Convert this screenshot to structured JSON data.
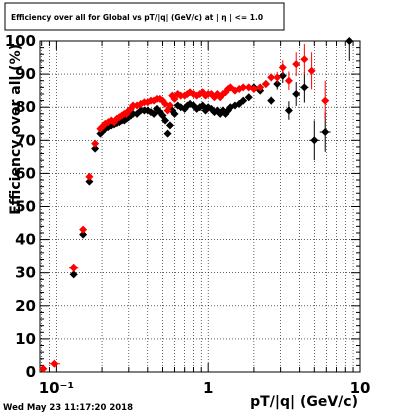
{
  "chart_data": {
    "type": "scatter",
    "title": "Efficiency over all for Global vs pT/|q| (GeV/c) at | η | <= 1.0",
    "xlabel": "pT/|q| (GeV/c)",
    "ylabel": "Efficiency over all (%)",
    "xscale": "log",
    "xlim": [
      0.078,
      10.0
    ],
    "ylim": [
      0,
      100
    ],
    "x_ticks": [
      {
        "value": 0.1,
        "label": "10⁻¹"
      },
      {
        "value": 1,
        "label": "1"
      },
      {
        "value": 10,
        "label": "10"
      }
    ],
    "y_ticks": [
      0,
      10,
      20,
      30,
      40,
      50,
      60,
      70,
      80,
      90,
      100
    ],
    "grid": true,
    "footer": "Wed May 23 11:17:20 2018",
    "series": [
      {
        "color": "#000000",
        "points": [
          {
            "x": 0.13,
            "y": 29.5
          },
          {
            "x": 0.15,
            "y": 41.5
          },
          {
            "x": 0.165,
            "y": 57.5
          },
          {
            "x": 0.18,
            "y": 67.5
          },
          {
            "x": 0.195,
            "y": 72.0
          },
          {
            "x": 0.2,
            "y": 72.5
          },
          {
            "x": 0.21,
            "y": 73.5
          },
          {
            "x": 0.22,
            "y": 74.0
          },
          {
            "x": 0.23,
            "y": 74.5
          },
          {
            "x": 0.24,
            "y": 74.8
          },
          {
            "x": 0.25,
            "y": 75.2
          },
          {
            "x": 0.26,
            "y": 75.5
          },
          {
            "x": 0.27,
            "y": 76.0
          },
          {
            "x": 0.28,
            "y": 76.0
          },
          {
            "x": 0.29,
            "y": 76.5
          },
          {
            "x": 0.3,
            "y": 77.0
          },
          {
            "x": 0.31,
            "y": 77.5
          },
          {
            "x": 0.32,
            "y": 78.0
          },
          {
            "x": 0.34,
            "y": 78.0
          },
          {
            "x": 0.36,
            "y": 79.0
          },
          {
            "x": 0.38,
            "y": 79.0
          },
          {
            "x": 0.4,
            "y": 79.0
          },
          {
            "x": 0.42,
            "y": 78.5
          },
          {
            "x": 0.44,
            "y": 78.0
          },
          {
            "x": 0.46,
            "y": 79.5
          },
          {
            "x": 0.48,
            "y": 78.5
          },
          {
            "x": 0.5,
            "y": 77.5
          },
          {
            "x": 0.52,
            "y": 76.0
          },
          {
            "x": 0.54,
            "y": 72.0
          },
          {
            "x": 0.56,
            "y": 74.5
          },
          {
            "x": 0.58,
            "y": 79.0
          },
          {
            "x": 0.6,
            "y": 78.0
          },
          {
            "x": 0.63,
            "y": 80.5
          },
          {
            "x": 0.66,
            "y": 80.0
          },
          {
            "x": 0.7,
            "y": 79.5
          },
          {
            "x": 0.73,
            "y": 80.5
          },
          {
            "x": 0.76,
            "y": 81.0
          },
          {
            "x": 0.8,
            "y": 80.5
          },
          {
            "x": 0.84,
            "y": 79.5
          },
          {
            "x": 0.88,
            "y": 80.0
          },
          {
            "x": 0.92,
            "y": 80.5
          },
          {
            "x": 0.96,
            "y": 79.0
          },
          {
            "x": 1.0,
            "y": 80.0
          },
          {
            "x": 1.05,
            "y": 79.5
          },
          {
            "x": 1.1,
            "y": 78.5
          },
          {
            "x": 1.15,
            "y": 79.0
          },
          {
            "x": 1.2,
            "y": 78.0
          },
          {
            "x": 1.25,
            "y": 79.0
          },
          {
            "x": 1.3,
            "y": 78.0
          },
          {
            "x": 1.35,
            "y": 79.0
          },
          {
            "x": 1.4,
            "y": 80.0
          },
          {
            "x": 1.5,
            "y": 80.5
          },
          {
            "x": 1.6,
            "y": 81.0
          },
          {
            "x": 1.7,
            "y": 82.0
          },
          {
            "x": 1.85,
            "y": 83.0
          },
          {
            "x": 2.0,
            "y": 86.0
          },
          {
            "x": 2.2,
            "y": 85.0
          },
          {
            "x": 2.4,
            "y": 87.0
          },
          {
            "x": 2.6,
            "y": 82.0
          },
          {
            "x": 2.85,
            "y": 87.0
          },
          {
            "x": 3.1,
            "y": 89.5
          },
          {
            "x": 3.4,
            "y": 79.0
          },
          {
            "x": 3.8,
            "y": 84.0
          },
          {
            "x": 4.3,
            "y": 86.0
          },
          {
            "x": 5.0,
            "y": 70.0
          },
          {
            "x": 5.9,
            "y": 72.5
          },
          {
            "x": 8.5,
            "y": 100.0
          }
        ]
      },
      {
        "color": "#ff0000",
        "points": [
          {
            "x": 0.082,
            "y": 1.0
          },
          {
            "x": 0.097,
            "y": 2.5
          },
          {
            "x": 0.13,
            "y": 31.5
          },
          {
            "x": 0.15,
            "y": 43.0
          },
          {
            "x": 0.165,
            "y": 59.0
          },
          {
            "x": 0.18,
            "y": 69.0
          },
          {
            "x": 0.195,
            "y": 73.5
          },
          {
            "x": 0.2,
            "y": 74.0
          },
          {
            "x": 0.21,
            "y": 75.0
          },
          {
            "x": 0.22,
            "y": 75.5
          },
          {
            "x": 0.23,
            "y": 76.0
          },
          {
            "x": 0.24,
            "y": 75.5
          },
          {
            "x": 0.25,
            "y": 76.5
          },
          {
            "x": 0.26,
            "y": 77.0
          },
          {
            "x": 0.27,
            "y": 77.5
          },
          {
            "x": 0.28,
            "y": 78.0
          },
          {
            "x": 0.29,
            "y": 78.0
          },
          {
            "x": 0.3,
            "y": 79.0
          },
          {
            "x": 0.31,
            "y": 79.5
          },
          {
            "x": 0.32,
            "y": 80.5
          },
          {
            "x": 0.34,
            "y": 80.5
          },
          {
            "x": 0.36,
            "y": 81.0
          },
          {
            "x": 0.38,
            "y": 81.5
          },
          {
            "x": 0.4,
            "y": 81.5
          },
          {
            "x": 0.42,
            "y": 82.0
          },
          {
            "x": 0.44,
            "y": 82.0
          },
          {
            "x": 0.46,
            "y": 82.5
          },
          {
            "x": 0.48,
            "y": 82.5
          },
          {
            "x": 0.5,
            "y": 82.0
          },
          {
            "x": 0.52,
            "y": 81.0
          },
          {
            "x": 0.54,
            "y": 79.0
          },
          {
            "x": 0.56,
            "y": 80.5
          },
          {
            "x": 0.58,
            "y": 83.5
          },
          {
            "x": 0.6,
            "y": 82.5
          },
          {
            "x": 0.63,
            "y": 84.0
          },
          {
            "x": 0.66,
            "y": 83.5
          },
          {
            "x": 0.7,
            "y": 83.5
          },
          {
            "x": 0.73,
            "y": 84.0
          },
          {
            "x": 0.76,
            "y": 84.5
          },
          {
            "x": 0.8,
            "y": 84.0
          },
          {
            "x": 0.84,
            "y": 83.5
          },
          {
            "x": 0.88,
            "y": 84.0
          },
          {
            "x": 0.92,
            "y": 84.5
          },
          {
            "x": 0.96,
            "y": 83.5
          },
          {
            "x": 1.0,
            "y": 84.0
          },
          {
            "x": 1.05,
            "y": 84.0
          },
          {
            "x": 1.1,
            "y": 83.0
          },
          {
            "x": 1.15,
            "y": 84.0
          },
          {
            "x": 1.2,
            "y": 83.0
          },
          {
            "x": 1.25,
            "y": 84.0
          },
          {
            "x": 1.3,
            "y": 84.5
          },
          {
            "x": 1.35,
            "y": 85.5
          },
          {
            "x": 1.4,
            "y": 86.0
          },
          {
            "x": 1.5,
            "y": 85.0
          },
          {
            "x": 1.6,
            "y": 85.5
          },
          {
            "x": 1.7,
            "y": 86.0
          },
          {
            "x": 1.85,
            "y": 86.0
          },
          {
            "x": 2.0,
            "y": 85.5
          },
          {
            "x": 2.2,
            "y": 86.0
          },
          {
            "x": 2.4,
            "y": 87.0
          },
          {
            "x": 2.6,
            "y": 89.0
          },
          {
            "x": 2.85,
            "y": 89.0
          },
          {
            "x": 3.1,
            "y": 92.0
          },
          {
            "x": 3.4,
            "y": 88.0
          },
          {
            "x": 3.8,
            "y": 93.0
          },
          {
            "x": 4.3,
            "y": 94.5
          },
          {
            "x": 4.8,
            "y": 91.0
          },
          {
            "x": 5.9,
            "y": 82.0
          }
        ]
      }
    ]
  }
}
